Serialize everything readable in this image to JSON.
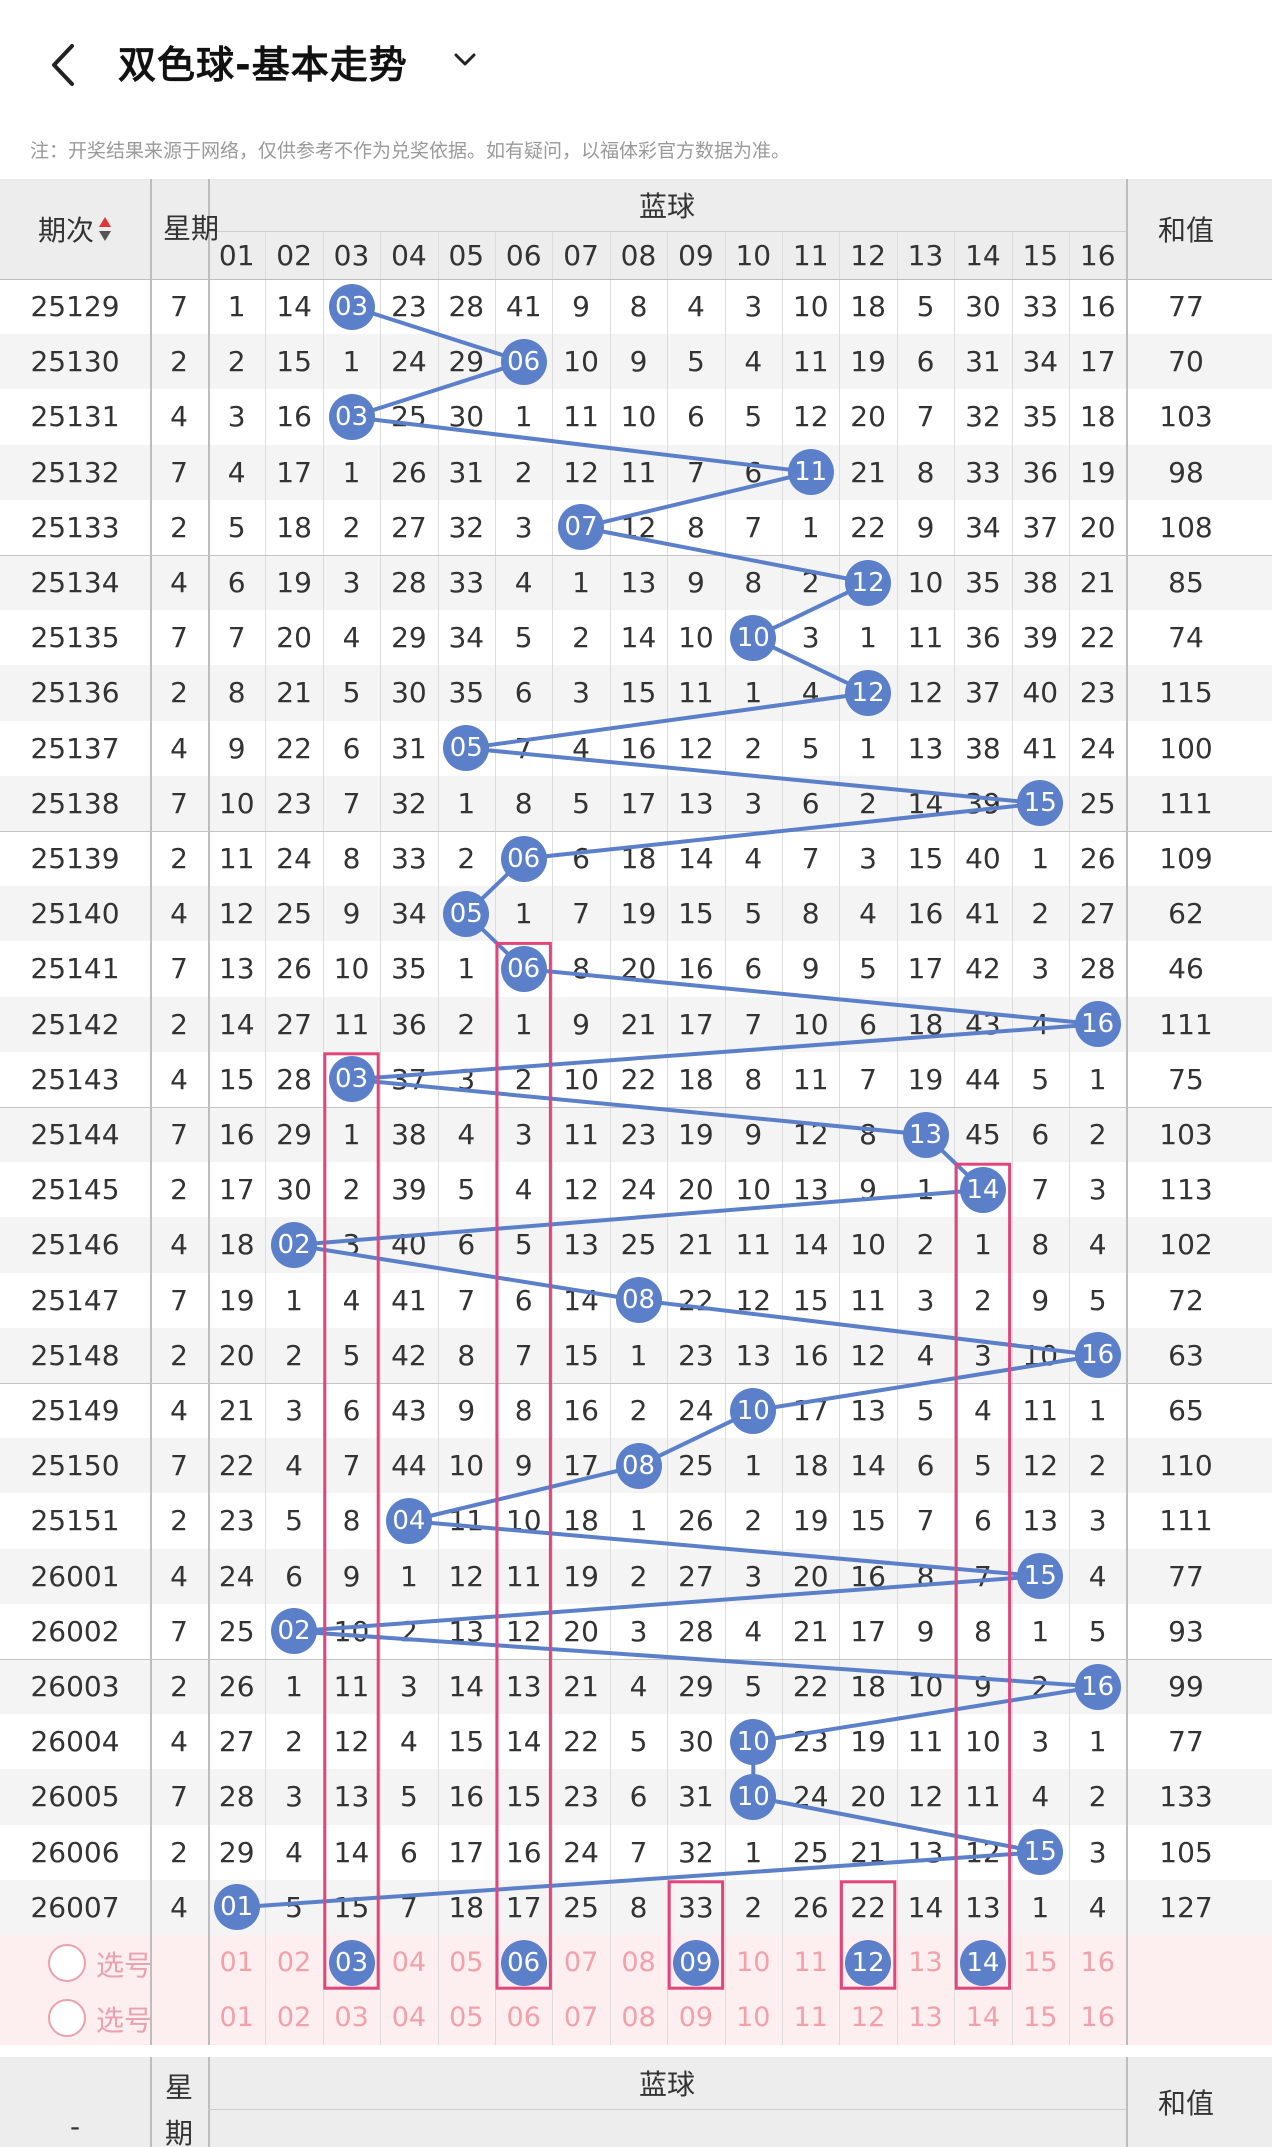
{
  "header": {
    "title": "双色球-基本走势",
    "back_icon": "chevron-left-icon",
    "dropdown_icon": "chevron-down-icon"
  },
  "notice": "注：开奖结果来源于网络，仅供参考不作为兑奖依据。如有疑问，以福体彩官方数据为准。",
  "table": {
    "col_issue": "期次",
    "col_week": "星期",
    "col_blue": "蓝球",
    "col_sum": "和值",
    "blue_nums": [
      "01",
      "02",
      "03",
      "04",
      "05",
      "06",
      "07",
      "08",
      "09",
      "10",
      "11",
      "12",
      "13",
      "14",
      "15",
      "16"
    ],
    "rows": [
      {
        "issue": "25129",
        "week": "7",
        "cells": [
          "1",
          "14",
          "03",
          "23",
          "28",
          "41",
          "9",
          "8",
          "4",
          "3",
          "10",
          "18",
          "5",
          "30",
          "33",
          "16"
        ],
        "hit": 3,
        "sum": "77"
      },
      {
        "issue": "25130",
        "week": "2",
        "cells": [
          "2",
          "15",
          "1",
          "24",
          "29",
          "06",
          "10",
          "9",
          "5",
          "4",
          "11",
          "19",
          "6",
          "31",
          "34",
          "17"
        ],
        "hit": 6,
        "sum": "70"
      },
      {
        "issue": "25131",
        "week": "4",
        "cells": [
          "3",
          "16",
          "03",
          "25",
          "30",
          "1",
          "11",
          "10",
          "6",
          "5",
          "12",
          "20",
          "7",
          "32",
          "35",
          "18"
        ],
        "hit": 3,
        "sum": "103"
      },
      {
        "issue": "25132",
        "week": "7",
        "cells": [
          "4",
          "17",
          "1",
          "26",
          "31",
          "2",
          "12",
          "11",
          "7",
          "6",
          "11",
          "21",
          "8",
          "33",
          "36",
          "19"
        ],
        "hit": 11,
        "sum": "98"
      },
      {
        "issue": "25133",
        "week": "2",
        "cells": [
          "5",
          "18",
          "2",
          "27",
          "32",
          "3",
          "07",
          "12",
          "8",
          "7",
          "1",
          "22",
          "9",
          "34",
          "37",
          "20"
        ],
        "hit": 7,
        "sum": "108"
      },
      {
        "issue": "25134",
        "week": "4",
        "cells": [
          "6",
          "19",
          "3",
          "28",
          "33",
          "4",
          "1",
          "13",
          "9",
          "8",
          "2",
          "12",
          "10",
          "35",
          "38",
          "21"
        ],
        "hit": 12,
        "sum": "85"
      },
      {
        "issue": "25135",
        "week": "7",
        "cells": [
          "7",
          "20",
          "4",
          "29",
          "34",
          "5",
          "2",
          "14",
          "10",
          "10",
          "3",
          "1",
          "11",
          "36",
          "39",
          "22"
        ],
        "hit": 10,
        "sum": "74"
      },
      {
        "issue": "25136",
        "week": "2",
        "cells": [
          "8",
          "21",
          "5",
          "30",
          "35",
          "6",
          "3",
          "15",
          "11",
          "1",
          "4",
          "12",
          "12",
          "37",
          "40",
          "23"
        ],
        "hit": 12,
        "sum": "115"
      },
      {
        "issue": "25137",
        "week": "4",
        "cells": [
          "9",
          "22",
          "6",
          "31",
          "05",
          "7",
          "4",
          "16",
          "12",
          "2",
          "5",
          "1",
          "13",
          "38",
          "41",
          "24"
        ],
        "hit": 5,
        "sum": "100"
      },
      {
        "issue": "25138",
        "week": "7",
        "cells": [
          "10",
          "23",
          "7",
          "32",
          "1",
          "8",
          "5",
          "17",
          "13",
          "3",
          "6",
          "2",
          "14",
          "39",
          "15",
          "25"
        ],
        "hit": 15,
        "sum": "111"
      },
      {
        "issue": "25139",
        "week": "2",
        "cells": [
          "11",
          "24",
          "8",
          "33",
          "2",
          "06",
          "6",
          "18",
          "14",
          "4",
          "7",
          "3",
          "15",
          "40",
          "1",
          "26"
        ],
        "hit": 6,
        "sum": "109"
      },
      {
        "issue": "25140",
        "week": "4",
        "cells": [
          "12",
          "25",
          "9",
          "34",
          "05",
          "1",
          "7",
          "19",
          "15",
          "5",
          "8",
          "4",
          "16",
          "41",
          "2",
          "27"
        ],
        "hit": 5,
        "sum": "62"
      },
      {
        "issue": "25141",
        "week": "7",
        "cells": [
          "13",
          "26",
          "10",
          "35",
          "1",
          "06",
          "8",
          "20",
          "16",
          "6",
          "9",
          "5",
          "17",
          "42",
          "3",
          "28"
        ],
        "hit": 6,
        "sum": "46"
      },
      {
        "issue": "25142",
        "week": "2",
        "cells": [
          "14",
          "27",
          "11",
          "36",
          "2",
          "1",
          "9",
          "21",
          "17",
          "7",
          "10",
          "6",
          "18",
          "43",
          "4",
          "16"
        ],
        "hit": 16,
        "sum": "111"
      },
      {
        "issue": "25143",
        "week": "4",
        "cells": [
          "15",
          "28",
          "03",
          "37",
          "3",
          "2",
          "10",
          "22",
          "18",
          "8",
          "11",
          "7",
          "19",
          "44",
          "5",
          "1"
        ],
        "hit": 3,
        "sum": "75"
      },
      {
        "issue": "25144",
        "week": "7",
        "cells": [
          "16",
          "29",
          "1",
          "38",
          "4",
          "3",
          "11",
          "23",
          "19",
          "9",
          "12",
          "8",
          "13",
          "45",
          "6",
          "2"
        ],
        "hit": 13,
        "sum": "103"
      },
      {
        "issue": "25145",
        "week": "2",
        "cells": [
          "17",
          "30",
          "2",
          "39",
          "5",
          "4",
          "12",
          "24",
          "20",
          "10",
          "13",
          "9",
          "1",
          "14",
          "7",
          "3"
        ],
        "hit": 14,
        "sum": "113"
      },
      {
        "issue": "25146",
        "week": "4",
        "cells": [
          "18",
          "02",
          "3",
          "40",
          "6",
          "5",
          "13",
          "25",
          "21",
          "11",
          "14",
          "10",
          "2",
          "1",
          "8",
          "4"
        ],
        "hit": 2,
        "sum": "102"
      },
      {
        "issue": "25147",
        "week": "7",
        "cells": [
          "19",
          "1",
          "4",
          "41",
          "7",
          "6",
          "14",
          "08",
          "22",
          "12",
          "15",
          "11",
          "3",
          "2",
          "9",
          "5"
        ],
        "hit": 8,
        "sum": "72"
      },
      {
        "issue": "25148",
        "week": "2",
        "cells": [
          "20",
          "2",
          "5",
          "42",
          "8",
          "7",
          "15",
          "1",
          "23",
          "13",
          "16",
          "12",
          "4",
          "3",
          "10",
          "16"
        ],
        "hit": 16,
        "sum": "63"
      },
      {
        "issue": "25149",
        "week": "4",
        "cells": [
          "21",
          "3",
          "6",
          "43",
          "9",
          "8",
          "16",
          "2",
          "24",
          "10",
          "17",
          "13",
          "5",
          "4",
          "11",
          "1"
        ],
        "hit": 10,
        "sum": "65"
      },
      {
        "issue": "25150",
        "week": "7",
        "cells": [
          "22",
          "4",
          "7",
          "44",
          "10",
          "9",
          "17",
          "08",
          "25",
          "1",
          "18",
          "14",
          "6",
          "5",
          "12",
          "2"
        ],
        "hit": 8,
        "sum": "110"
      },
      {
        "issue": "25151",
        "week": "2",
        "cells": [
          "23",
          "5",
          "8",
          "04",
          "11",
          "10",
          "18",
          "1",
          "26",
          "2",
          "19",
          "15",
          "7",
          "6",
          "13",
          "3"
        ],
        "hit": 4,
        "sum": "111"
      },
      {
        "issue": "26001",
        "week": "4",
        "cells": [
          "24",
          "6",
          "9",
          "1",
          "12",
          "11",
          "19",
          "2",
          "27",
          "3",
          "20",
          "16",
          "8",
          "7",
          "15",
          "4"
        ],
        "hit": 15,
        "sum": "77"
      },
      {
        "issue": "26002",
        "week": "7",
        "cells": [
          "25",
          "02",
          "10",
          "2",
          "13",
          "12",
          "20",
          "3",
          "28",
          "4",
          "21",
          "17",
          "9",
          "8",
          "1",
          "5"
        ],
        "hit": 2,
        "sum": "93"
      },
      {
        "issue": "26003",
        "week": "2",
        "cells": [
          "26",
          "1",
          "11",
          "3",
          "14",
          "13",
          "21",
          "4",
          "29",
          "5",
          "22",
          "18",
          "10",
          "9",
          "2",
          "16"
        ],
        "hit": 16,
        "sum": "99"
      },
      {
        "issue": "26004",
        "week": "4",
        "cells": [
          "27",
          "2",
          "12",
          "4",
          "15",
          "14",
          "22",
          "5",
          "30",
          "10",
          "23",
          "19",
          "11",
          "10",
          "3",
          "1"
        ],
        "hit": 10,
        "sum": "77"
      },
      {
        "issue": "26005",
        "week": "7",
        "cells": [
          "28",
          "3",
          "13",
          "5",
          "16",
          "15",
          "23",
          "6",
          "31",
          "10",
          "24",
          "20",
          "12",
          "11",
          "4",
          "2"
        ],
        "hit": 10,
        "sum": "133"
      },
      {
        "issue": "26006",
        "week": "2",
        "cells": [
          "29",
          "4",
          "14",
          "6",
          "17",
          "16",
          "24",
          "7",
          "32",
          "1",
          "25",
          "21",
          "13",
          "12",
          "15",
          "3"
        ],
        "hit": 15,
        "sum": "105"
      },
      {
        "issue": "26007",
        "week": "4",
        "cells": [
          "01",
          "5",
          "15",
          "7",
          "18",
          "17",
          "25",
          "8",
          "33",
          "2",
          "26",
          "22",
          "14",
          "13",
          "1",
          "4"
        ],
        "hit": 1,
        "sum": "127"
      }
    ],
    "pick_label": "选号",
    "pick_rows": [
      {
        "selected": [
          3,
          6,
          9,
          12,
          14
        ]
      },
      {
        "selected": []
      }
    ],
    "footer_dash": "-",
    "footer_week": "星期",
    "footer_blue": "蓝球",
    "footer_sum": "和值",
    "highlight_cols": [
      3,
      6,
      9,
      12,
      14
    ],
    "colors": {
      "ball": "#5b7fc9",
      "line": "#5b7fc9",
      "highlight": "#e0457b",
      "pick_text": "#f2a0aa",
      "pick_bg": "#fdeef0",
      "stripe": "#f4f4f4"
    }
  }
}
